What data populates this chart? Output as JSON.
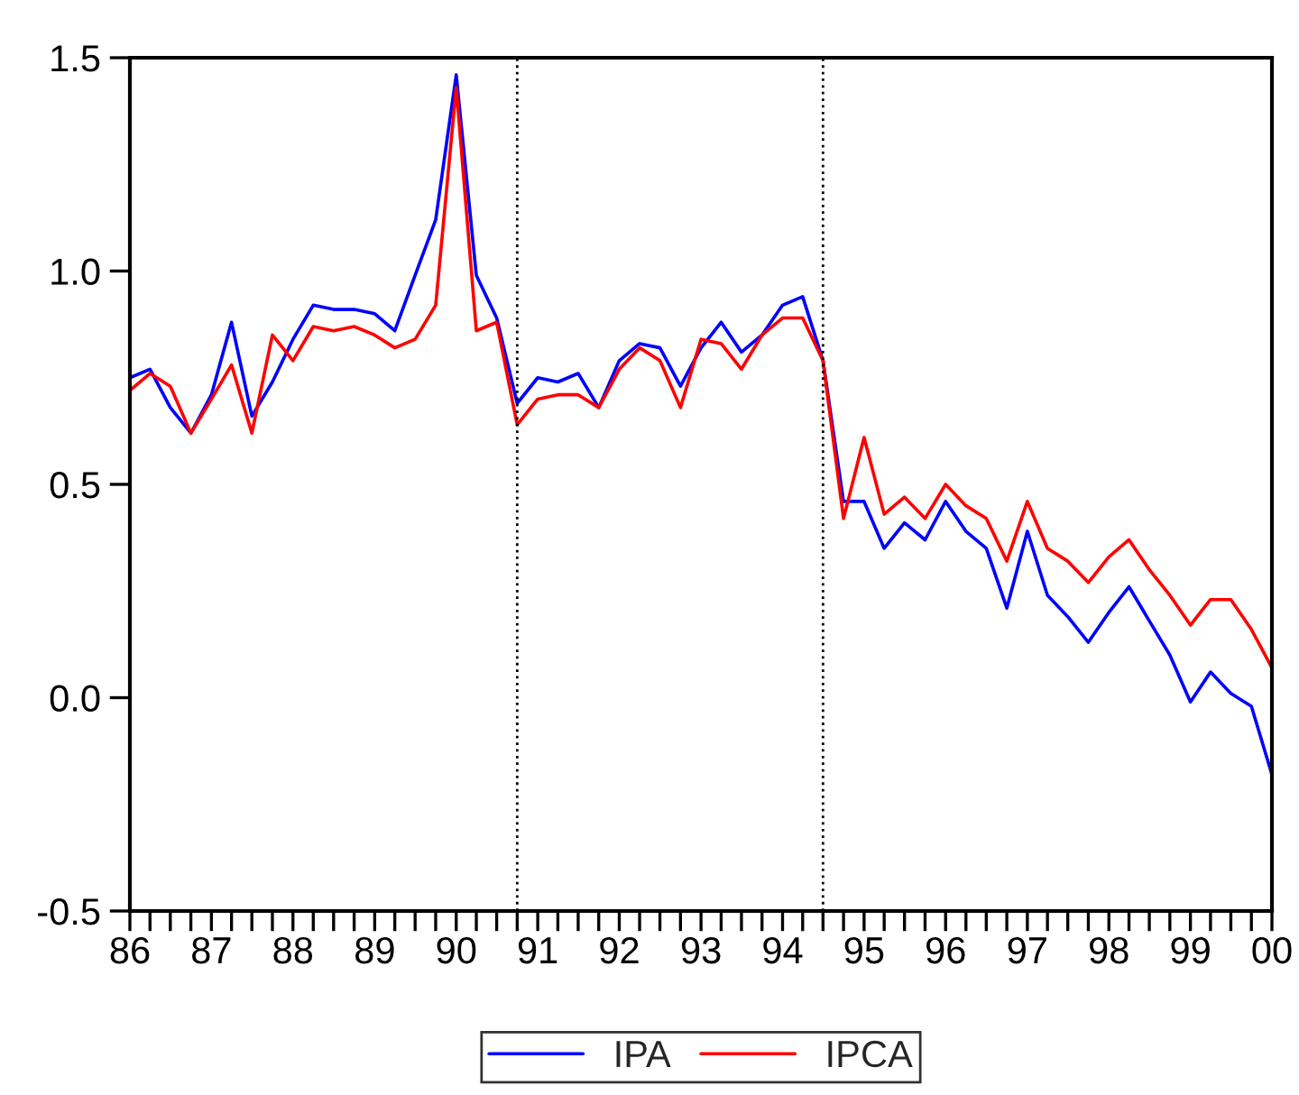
{
  "chart_data": {
    "type": "line",
    "x": [
      "1986-01",
      "1986-04",
      "1986-07",
      "1986-10",
      "1987-01",
      "1987-04",
      "1987-07",
      "1987-10",
      "1988-01",
      "1988-04",
      "1988-07",
      "1988-10",
      "1989-01",
      "1989-04",
      "1989-07",
      "1989-10",
      "1990-01",
      "1990-04",
      "1990-07",
      "1990-10",
      "1991-01",
      "1991-04",
      "1991-07",
      "1991-10",
      "1992-01",
      "1992-04",
      "1992-07",
      "1992-10",
      "1993-01",
      "1993-04",
      "1993-07",
      "1993-10",
      "1994-01",
      "1994-04",
      "1994-07",
      "1994-10",
      "1995-01",
      "1995-04",
      "1995-07",
      "1995-10",
      "1996-01",
      "1996-04",
      "1996-07",
      "1996-10",
      "1997-01",
      "1997-04",
      "1997-07",
      "1997-10",
      "1998-01",
      "1998-04",
      "1998-07",
      "1998-10",
      "1999-01",
      "1999-04",
      "1999-07",
      "1999-10",
      "2000-01"
    ],
    "series": [
      {
        "name": "IPA",
        "color": "#0000ff",
        "values": [
          0.75,
          0.77,
          0.68,
          0.62,
          0.71,
          0.88,
          0.66,
          0.74,
          0.84,
          0.92,
          0.91,
          0.91,
          0.9,
          0.86,
          0.99,
          1.12,
          1.46,
          0.99,
          0.89,
          0.69,
          0.75,
          0.74,
          0.76,
          0.68,
          0.79,
          0.83,
          0.82,
          0.73,
          0.82,
          0.88,
          0.81,
          0.85,
          0.92,
          0.94,
          0.79,
          0.46,
          0.46,
          0.35,
          0.41,
          0.37,
          0.46,
          0.39,
          0.35,
          0.21,
          0.39,
          0.24,
          0.19,
          0.13,
          0.2,
          0.26,
          0.18,
          0.1,
          -0.01,
          0.06,
          0.01,
          -0.02,
          -0.18
        ]
      },
      {
        "name": "IPCA",
        "color": "#ff0000",
        "values": [
          0.72,
          0.76,
          0.73,
          0.62,
          0.7,
          0.78,
          0.62,
          0.85,
          0.79,
          0.87,
          0.86,
          0.87,
          0.85,
          0.82,
          0.84,
          0.92,
          1.43,
          0.86,
          0.88,
          0.64,
          0.7,
          0.71,
          0.71,
          0.68,
          0.77,
          0.82,
          0.79,
          0.68,
          0.84,
          0.83,
          0.77,
          0.85,
          0.89,
          0.89,
          0.79,
          0.42,
          0.61,
          0.43,
          0.47,
          0.42,
          0.5,
          0.45,
          0.42,
          0.32,
          0.46,
          0.35,
          0.32,
          0.27,
          0.33,
          0.37,
          0.3,
          0.24,
          0.17,
          0.23,
          0.23,
          0.16,
          0.07
        ]
      }
    ],
    "xlim": [
      "1986-01",
      "2000-01"
    ],
    "xticks": [
      {
        "value": "1986-01",
        "label": "86"
      },
      {
        "value": "1986-04",
        "label": null
      },
      {
        "value": "1986-07",
        "label": null
      },
      {
        "value": "1986-10",
        "label": null
      },
      {
        "value": "1987-01",
        "label": "87"
      },
      {
        "value": "1987-04",
        "label": null
      },
      {
        "value": "1987-07",
        "label": null
      },
      {
        "value": "1987-10",
        "label": null
      },
      {
        "value": "1988-01",
        "label": "88"
      },
      {
        "value": "1988-04",
        "label": null
      },
      {
        "value": "1988-07",
        "label": null
      },
      {
        "value": "1988-10",
        "label": null
      },
      {
        "value": "1989-01",
        "label": "89"
      },
      {
        "value": "1989-04",
        "label": null
      },
      {
        "value": "1989-07",
        "label": null
      },
      {
        "value": "1989-10",
        "label": null
      },
      {
        "value": "1990-01",
        "label": "90"
      },
      {
        "value": "1990-04",
        "label": null
      },
      {
        "value": "1990-07",
        "label": null
      },
      {
        "value": "1990-10",
        "label": null
      },
      {
        "value": "1991-01",
        "label": "91"
      },
      {
        "value": "1991-04",
        "label": null
      },
      {
        "value": "1991-07",
        "label": null
      },
      {
        "value": "1991-10",
        "label": null
      },
      {
        "value": "1992-01",
        "label": "92"
      },
      {
        "value": "1992-04",
        "label": null
      },
      {
        "value": "1992-07",
        "label": null
      },
      {
        "value": "1992-10",
        "label": null
      },
      {
        "value": "1993-01",
        "label": "93"
      },
      {
        "value": "1993-04",
        "label": null
      },
      {
        "value": "1993-07",
        "label": null
      },
      {
        "value": "1993-10",
        "label": null
      },
      {
        "value": "1994-01",
        "label": "94"
      },
      {
        "value": "1994-04",
        "label": null
      },
      {
        "value": "1994-07",
        "label": null
      },
      {
        "value": "1994-10",
        "label": null
      },
      {
        "value": "1995-01",
        "label": "95"
      },
      {
        "value": "1995-04",
        "label": null
      },
      {
        "value": "1995-07",
        "label": null
      },
      {
        "value": "1995-10",
        "label": null
      },
      {
        "value": "1996-01",
        "label": "96"
      },
      {
        "value": "1996-04",
        "label": null
      },
      {
        "value": "1996-07",
        "label": null
      },
      {
        "value": "1996-10",
        "label": null
      },
      {
        "value": "1997-01",
        "label": "97"
      },
      {
        "value": "1997-04",
        "label": null
      },
      {
        "value": "1997-07",
        "label": null
      },
      {
        "value": "1997-10",
        "label": null
      },
      {
        "value": "1998-01",
        "label": "98"
      },
      {
        "value": "1998-04",
        "label": null
      },
      {
        "value": "1998-07",
        "label": null
      },
      {
        "value": "1998-10",
        "label": null
      },
      {
        "value": "1999-01",
        "label": "99"
      },
      {
        "value": "1999-04",
        "label": null
      },
      {
        "value": "1999-07",
        "label": null
      },
      {
        "value": "1999-10",
        "label": null
      },
      {
        "value": "2000-01",
        "label": "00"
      }
    ],
    "ylim": [
      -0.5,
      1.5
    ],
    "yticks": [
      {
        "value": -0.5,
        "label": "-0.5"
      },
      {
        "value": 0,
        "label": "0.0"
      },
      {
        "value": 0.5,
        "label": "0.5"
      },
      {
        "value": 1.0,
        "label": "1.0"
      },
      {
        "value": 1.5,
        "label": "1.5"
      }
    ],
    "ref_lines": [
      {
        "axis": "x",
        "value": "1990-10",
        "color": "#000000",
        "line_style": "dotted"
      },
      {
        "axis": "x",
        "value": "1994-07",
        "color": "#000000",
        "line_style": "dotted"
      }
    ],
    "grid": false,
    "legend": "bottom",
    "line_style": "solid"
  }
}
